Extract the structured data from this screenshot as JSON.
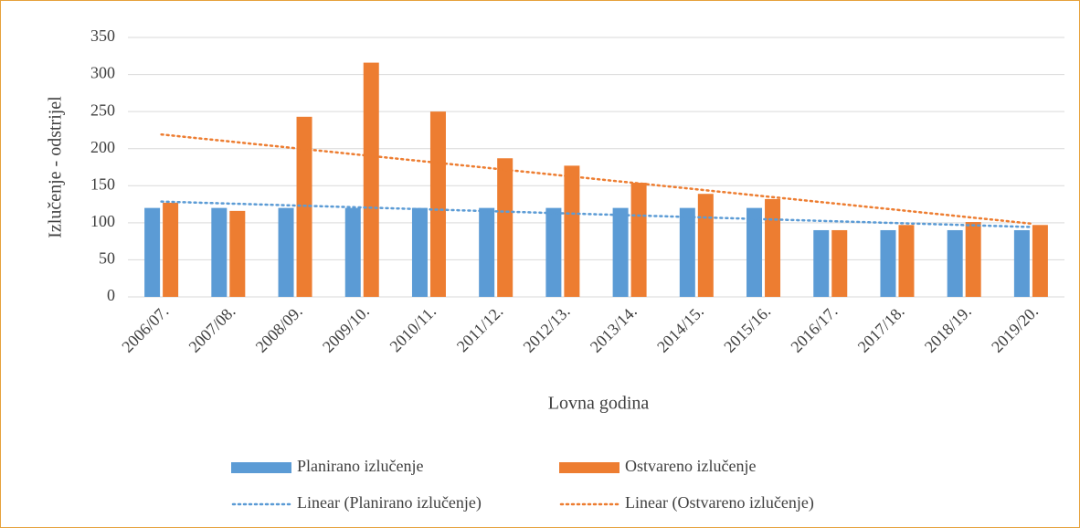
{
  "chart_data": {
    "type": "bar",
    "x_label": "Lovna godina",
    "y_label": "Izlučenje - odstrijel",
    "categories": [
      "2006/07.",
      "2007/08.",
      "2008/09.",
      "2009/10.",
      "2010/11.",
      "2011/12.",
      "2012/13.",
      "2013/14.",
      "2014/15.",
      "2015/16.",
      "2016/17.",
      "2017/18.",
      "2018/19.",
      "2019/20."
    ],
    "series": [
      {
        "name": "Planirano izlučenje",
        "color": "#5b9bd5",
        "values": [
          120,
          120,
          120,
          120,
          120,
          120,
          120,
          120,
          120,
          120,
          90,
          90,
          90,
          90
        ]
      },
      {
        "name": "Ostvareno izlučenje",
        "color": "#ed7d31",
        "values": [
          127,
          116,
          243,
          316,
          250,
          187,
          177,
          154,
          139,
          132,
          90,
          97,
          101,
          97
        ]
      }
    ],
    "trendlines": [
      {
        "name": "Linear (Planirano izlučenje)",
        "color": "#5b9bd5"
      },
      {
        "name": "Linear (Ostvareno izlučenje)",
        "color": "#ed7d31"
      }
    ],
    "ylim": [
      0,
      350
    ],
    "yticks": [
      0,
      50,
      100,
      150,
      200,
      250,
      300,
      350
    ],
    "grid": true,
    "legend": "bottom"
  }
}
